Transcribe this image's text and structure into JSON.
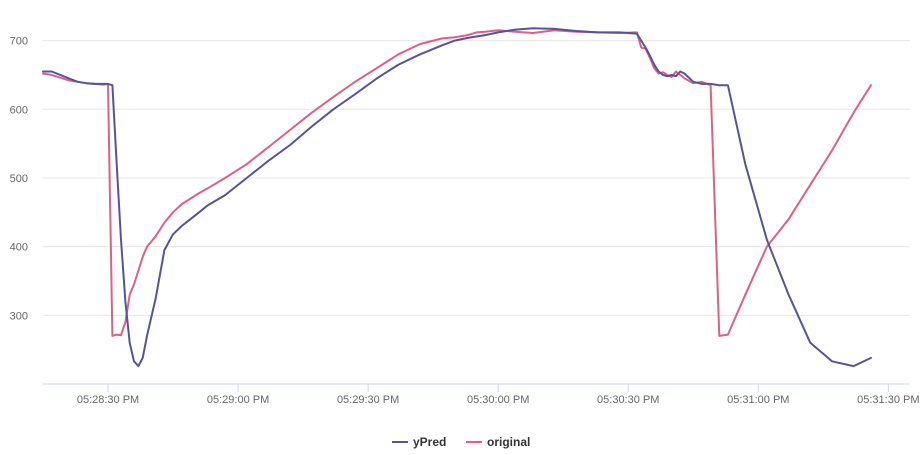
{
  "chart_data": {
    "type": "line",
    "title": "",
    "xlabel": "",
    "ylabel": "",
    "x_unit": "time",
    "xlim": [
      "05:28:15",
      "05:31:35"
    ],
    "ylim": [
      200,
      730
    ],
    "x_ticks": [
      "05:28:30 PM",
      "05:29:00 PM",
      "05:29:30 PM",
      "05:30:00 PM",
      "05:30:30 PM",
      "05:31:00 PM",
      "05:31:30 PM"
    ],
    "y_ticks": [
      300,
      400,
      500,
      600,
      700
    ],
    "grid": "horizontal",
    "legend_position": "bottom-center",
    "series": [
      {
        "name": "yPred",
        "color": "#55549a",
        "x": [
          "05:28:15",
          "05:28:17",
          "05:28:19",
          "05:28:21",
          "05:28:23",
          "05:28:25",
          "05:28:27",
          "05:28:29",
          "05:28:30",
          "05:28:31",
          "05:28:32",
          "05:28:33",
          "05:28:34",
          "05:28:35",
          "05:28:36",
          "05:28:37",
          "05:28:38",
          "05:28:39",
          "05:28:41",
          "05:28:43",
          "05:28:45",
          "05:28:47",
          "05:28:49",
          "05:28:51",
          "05:28:53",
          "05:28:57",
          "05:29:02",
          "05:29:07",
          "05:29:12",
          "05:29:17",
          "05:29:22",
          "05:29:27",
          "05:29:32",
          "05:29:37",
          "05:29:42",
          "05:29:47",
          "05:29:50",
          "05:29:53",
          "05:29:55",
          "05:29:57",
          "05:30:00",
          "05:30:04",
          "05:30:08",
          "05:30:13",
          "05:30:18",
          "05:30:23",
          "05:30:28",
          "05:30:32",
          "05:30:33",
          "05:30:34",
          "05:30:35",
          "05:30:36",
          "05:30:37",
          "05:30:38",
          "05:30:39",
          "05:30:40",
          "05:30:41",
          "05:30:42",
          "05:30:43",
          "05:30:45",
          "05:30:47",
          "05:30:49",
          "05:30:51",
          "05:30:53",
          "05:30:57",
          "05:31:02",
          "05:31:07",
          "05:31:12",
          "05:31:17",
          "05:31:22",
          "05:31:26"
        ],
        "values": [
          655,
          655,
          650,
          645,
          640,
          638,
          637,
          637,
          637,
          635,
          520,
          410,
          320,
          260,
          233,
          226,
          238,
          270,
          325,
          395,
          418,
          430,
          440,
          450,
          460,
          475,
          500,
          525,
          548,
          575,
          600,
          622,
          645,
          665,
          680,
          693,
          700,
          704,
          706,
          708,
          712,
          716,
          718,
          717,
          714,
          712,
          712,
          710,
          700,
          690,
          678,
          665,
          655,
          650,
          648,
          650,
          648,
          655,
          652,
          640,
          637,
          637,
          635,
          635,
          520,
          410,
          330,
          260,
          233,
          226,
          238
        ],
        "tail_note": ""
      },
      {
        "name": "original",
        "color": "#e05f84",
        "x": [
          "05:28:15",
          "05:28:17",
          "05:28:19",
          "05:28:21",
          "05:28:23",
          "05:28:25",
          "05:28:27",
          "05:28:29",
          "05:28:30",
          "05:28:31",
          "05:28:32",
          "05:28:33",
          "05:28:34",
          "05:28:35",
          "05:28:36",
          "05:28:37",
          "05:28:38",
          "05:28:39",
          "05:28:41",
          "05:28:43",
          "05:28:45",
          "05:28:47",
          "05:28:49",
          "05:28:51",
          "05:28:53",
          "05:28:57",
          "05:29:02",
          "05:29:07",
          "05:29:12",
          "05:29:17",
          "05:29:22",
          "05:29:27",
          "05:29:32",
          "05:29:37",
          "05:29:42",
          "05:29:47",
          "05:29:50",
          "05:29:53",
          "05:29:55",
          "05:29:57",
          "05:30:00",
          "05:30:04",
          "05:30:08",
          "05:30:13",
          "05:30:18",
          "05:30:23",
          "05:30:28",
          "05:30:32",
          "05:30:33",
          "05:30:34",
          "05:30:35",
          "05:30:36",
          "05:30:37",
          "05:30:38",
          "05:30:39",
          "05:30:40",
          "05:30:41",
          "05:30:42",
          "05:30:43",
          "05:30:45",
          "05:30:47",
          "05:30:49",
          "05:30:51",
          "05:30:53",
          "05:30:57",
          "05:31:02",
          "05:31:07",
          "05:31:12",
          "05:31:17",
          "05:31:22",
          "05:31:26"
        ],
        "values": [
          652,
          650,
          646,
          642,
          640,
          638,
          637,
          636,
          637,
          270,
          272,
          271,
          290,
          330,
          345,
          365,
          385,
          400,
          415,
          435,
          450,
          462,
          470,
          478,
          485,
          500,
          520,
          545,
          570,
          595,
          618,
          640,
          660,
          680,
          695,
          703,
          705,
          708,
          712,
          713,
          715,
          713,
          711,
          715,
          713,
          712,
          711,
          712,
          690,
          688,
          675,
          660,
          652,
          654,
          650,
          647,
          655,
          650,
          645,
          638,
          640,
          635,
          270,
          272,
          330,
          400,
          440,
          490,
          540,
          595,
          635
        ]
      }
    ]
  },
  "legend": {
    "items": [
      {
        "label": "yPred",
        "color": "#55549a"
      },
      {
        "label": "original",
        "color": "#e05f84"
      }
    ]
  }
}
